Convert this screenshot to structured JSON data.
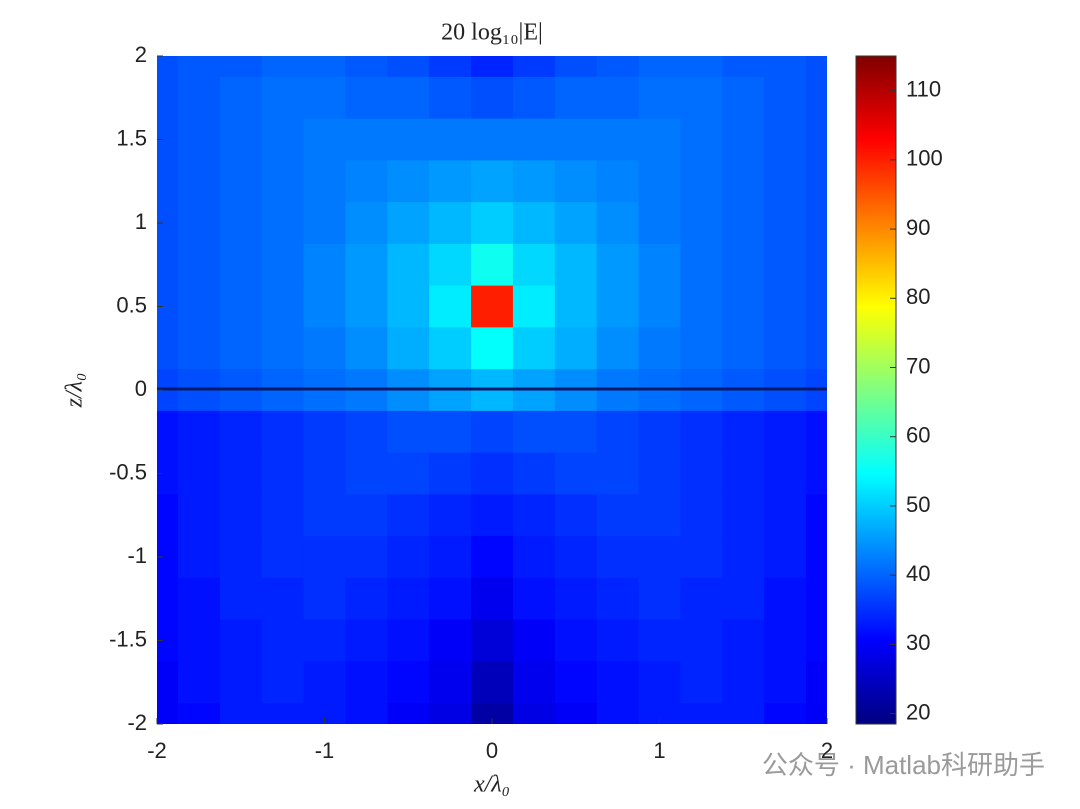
{
  "chart_data": {
    "type": "heatmap",
    "title": "20 log₁₀|E|",
    "x_label": "x/λ₀",
    "y_label": "z/λ₀",
    "watermark": "公众号 · Matlab科研助手",
    "x": [
      -2,
      -1.75,
      -1.5,
      -1.25,
      -1,
      -0.75,
      -0.5,
      -0.25,
      0,
      0.25,
      0.5,
      0.75,
      1,
      1.25,
      1.5,
      1.75,
      2
    ],
    "y": [
      2,
      1.75,
      1.5,
      1.25,
      1,
      0.75,
      0.5,
      0.25,
      0,
      -0.25,
      -0.5,
      -0.75,
      -1,
      -1.25,
      -1.5,
      -1.75,
      -2
    ],
    "values": [
      [
        38,
        39,
        39,
        40,
        40,
        39,
        38,
        36,
        34,
        36,
        38,
        39,
        40,
        40,
        39,
        39,
        38
      ],
      [
        38,
        39,
        40,
        41,
        41,
        40,
        40,
        39,
        38,
        39,
        40,
        40,
        41,
        41,
        40,
        39,
        38
      ],
      [
        38,
        39,
        40,
        41,
        42,
        42,
        42,
        42,
        42,
        42,
        42,
        42,
        42,
        41,
        40,
        39,
        38
      ],
      [
        38,
        39,
        40,
        41,
        42,
        43,
        44,
        45,
        46,
        45,
        44,
        43,
        42,
        41,
        40,
        39,
        38
      ],
      [
        38,
        39,
        40,
        41,
        42,
        44,
        46,
        48,
        50,
        48,
        46,
        44,
        42,
        41,
        40,
        39,
        38
      ],
      [
        38,
        39,
        40,
        41,
        43,
        45,
        48,
        51,
        56,
        51,
        48,
        45,
        43,
        41,
        40,
        39,
        38
      ],
      [
        38,
        39,
        40,
        41,
        43,
        45,
        48,
        53,
        100,
        53,
        48,
        45,
        43,
        41,
        40,
        39,
        38
      ],
      [
        38,
        39,
        40,
        41,
        42,
        44,
        47,
        50,
        55,
        50,
        47,
        44,
        42,
        41,
        40,
        39,
        38
      ],
      [
        37,
        38,
        39,
        40,
        41,
        42,
        44,
        46,
        48,
        46,
        44,
        42,
        41,
        40,
        39,
        38,
        37
      ],
      [
        32,
        33,
        34,
        35,
        36,
        37,
        38,
        38,
        37,
        38,
        38,
        37,
        36,
        35,
        34,
        33,
        32
      ],
      [
        32,
        33,
        34,
        35,
        36,
        37,
        37,
        36,
        35,
        36,
        37,
        37,
        36,
        35,
        34,
        33,
        32
      ],
      [
        31,
        33,
        34,
        35,
        36,
        36,
        35,
        34,
        33,
        34,
        35,
        36,
        36,
        35,
        34,
        33,
        31
      ],
      [
        31,
        33,
        34,
        35,
        35,
        35,
        34,
        33,
        31,
        33,
        34,
        35,
        35,
        35,
        34,
        33,
        31
      ],
      [
        31,
        32,
        34,
        34,
        35,
        34,
        33,
        32,
        29,
        32,
        33,
        34,
        35,
        34,
        34,
        32,
        31
      ],
      [
        31,
        32,
        33,
        34,
        34,
        33,
        32,
        30,
        27,
        30,
        32,
        33,
        34,
        34,
        33,
        32,
        31
      ],
      [
        30,
        32,
        33,
        34,
        33,
        32,
        31,
        29,
        24,
        29,
        31,
        32,
        33,
        34,
        33,
        32,
        30
      ],
      [
        30,
        31,
        33,
        33,
        33,
        32,
        30,
        28,
        22,
        28,
        30,
        32,
        33,
        33,
        33,
        31,
        30
      ]
    ],
    "xlim": [
      -2,
      2
    ],
    "xticks": [
      -2,
      -1,
      0,
      1,
      2
    ],
    "ylim": [
      -2,
      2
    ],
    "yticks": [
      -2,
      -1.5,
      -1,
      -0.5,
      0,
      0.5,
      1,
      1.5,
      2
    ],
    "colormap": "jet",
    "clim": [
      18.5,
      115
    ],
    "cticks": [
      20,
      30,
      40,
      50,
      60,
      70,
      80,
      90,
      100,
      110
    ]
  }
}
